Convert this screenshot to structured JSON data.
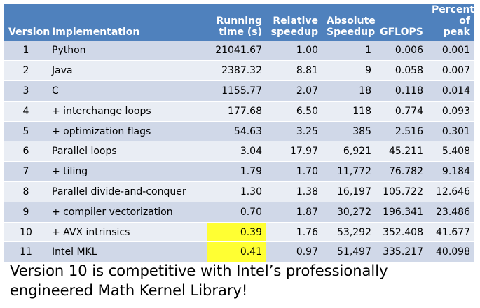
{
  "table": {
    "headers": {
      "version": "Version",
      "implementation": "Implementation",
      "running_time": [
        "Running",
        "time (s)"
      ],
      "relative_speedup": [
        "Relative",
        "speedup"
      ],
      "absolute_speedup": [
        "Absolute",
        "Speedup"
      ],
      "gflops": "GFLOPS",
      "percent_peak": [
        "Percent",
        "of peak"
      ]
    },
    "rows": [
      {
        "version": "1",
        "implementation": "Python",
        "running_time": "21041.67",
        "relative_speedup": "1.00",
        "absolute_speedup": "1",
        "gflops": "0.006",
        "percent_peak": "0.001"
      },
      {
        "version": "2",
        "implementation": "Java",
        "running_time": "2387.32",
        "relative_speedup": "8.81",
        "absolute_speedup": "9",
        "gflops": "0.058",
        "percent_peak": "0.007"
      },
      {
        "version": "3",
        "implementation": "C",
        "running_time": "1155.77",
        "relative_speedup": "2.07",
        "absolute_speedup": "18",
        "gflops": "0.118",
        "percent_peak": "0.014"
      },
      {
        "version": "4",
        "implementation": "+ interchange loops",
        "running_time": "177.68",
        "relative_speedup": "6.50",
        "absolute_speedup": "118",
        "gflops": "0.774",
        "percent_peak": "0.093"
      },
      {
        "version": "5",
        "implementation": "+ optimization flags",
        "running_time": "54.63",
        "relative_speedup": "3.25",
        "absolute_speedup": "385",
        "gflops": "2.516",
        "percent_peak": "0.301"
      },
      {
        "version": "6",
        "implementation": "Parallel loops",
        "running_time": "3.04",
        "relative_speedup": "17.97",
        "absolute_speedup": "6,921",
        "gflops": "45.211",
        "percent_peak": "5.408"
      },
      {
        "version": "7",
        "implementation": "+ tiling",
        "running_time": "1.79",
        "relative_speedup": "1.70",
        "absolute_speedup": "11,772",
        "gflops": "76.782",
        "percent_peak": "9.184"
      },
      {
        "version": "8",
        "implementation": "Parallel divide-and-conquer",
        "running_time": "1.30",
        "relative_speedup": "1.38",
        "absolute_speedup": "16,197",
        "gflops": "105.722",
        "percent_peak": "12.646"
      },
      {
        "version": "9",
        "implementation": "+ compiler vectorization",
        "running_time": "0.70",
        "relative_speedup": "1.87",
        "absolute_speedup": "30,272",
        "gflops": "196.341",
        "percent_peak": "23.486"
      },
      {
        "version": "10",
        "implementation": "+ AVX intrinsics",
        "running_time": "0.39",
        "relative_speedup": "1.76",
        "absolute_speedup": "53,292",
        "gflops": "352.408",
        "percent_peak": "41.677"
      },
      {
        "version": "11",
        "implementation": "Intel MKL",
        "running_time": "0.41",
        "relative_speedup": "0.97",
        "absolute_speedup": "51,497",
        "gflops": "335.217",
        "percent_peak": "40.098"
      }
    ],
    "highlighted_running_time_rows": [
      10,
      11
    ],
    "colors": {
      "header_bg": "#4f81bd",
      "row_odd_bg": "#d0d8e8",
      "row_even_bg": "#e9edf4",
      "highlight": "#ffff33"
    }
  },
  "caption": {
    "line1": "Version 10 is competitive with Intel’s professionally",
    "line2": "engineered Math Kernel Library!"
  }
}
